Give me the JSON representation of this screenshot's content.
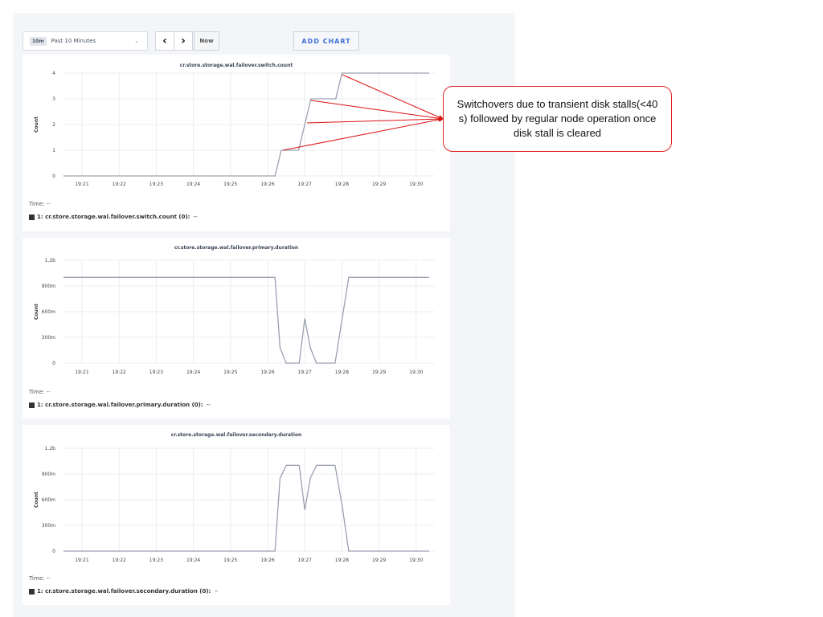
{
  "toolbar": {
    "range_badge": "10m",
    "range_label": "Past 10 Minutes",
    "prev_icon": "chevron-left-icon",
    "next_icon": "chevron-right-icon",
    "now_label": "Now",
    "add_chart_label": "ADD CHART"
  },
  "colors": {
    "series": "#9aa0b0",
    "annotation": "#dd1111",
    "accent": "#3d6fd6"
  },
  "annotation": {
    "text": "Switchovers due to transient disk stalls(<40 s) followed by regular node operation once disk stall is cleared"
  },
  "chart_data": [
    {
      "type": "line",
      "title": "cr.store.storage.wal.failover.switch.count",
      "ylabel": "Count",
      "ylim": [
        0,
        4
      ],
      "yticks": [
        {
          "v": 0,
          "label": "0"
        },
        {
          "v": 1,
          "label": "1"
        },
        {
          "v": 2,
          "label": "2"
        },
        {
          "v": 3,
          "label": "3"
        },
        {
          "v": 4,
          "label": "4"
        }
      ],
      "xticks": [
        "19:21",
        "19:22",
        "19:23",
        "19:24",
        "19:25",
        "19:26",
        "19:27",
        "19:28",
        "19:29",
        "19:30"
      ],
      "grid": true,
      "time_label": "Time:",
      "time_value": "--",
      "legend": {
        "label": "1: cr.store.storage.wal.failover.switch.count (0):",
        "value": "--"
      },
      "series": [
        {
          "x": [
            "19:20:30",
            "19:26:12",
            "19:26:22",
            "19:26:50",
            "19:27:10",
            "19:27:50",
            "19:28:00",
            "19:30:21"
          ],
          "y": [
            0,
            0,
            1,
            1,
            3,
            3,
            4,
            4
          ]
        }
      ]
    },
    {
      "type": "line",
      "title": "cr.store.storage.wal.failover.primary.duration",
      "ylabel": "Count",
      "ylim": [
        0,
        1.2
      ],
      "yticks": [
        {
          "v": 0,
          "label": "0"
        },
        {
          "v": 0.3,
          "label": "300m"
        },
        {
          "v": 0.6,
          "label": "600m"
        },
        {
          "v": 0.9,
          "label": "900m"
        },
        {
          "v": 1.2,
          "label": "1.2b"
        }
      ],
      "xticks": [
        "19:21",
        "19:22",
        "19:23",
        "19:24",
        "19:25",
        "19:26",
        "19:27",
        "19:28",
        "19:29",
        "19:30"
      ],
      "grid": true,
      "time_label": "Time:",
      "time_value": "--",
      "legend": {
        "label": "1: cr.store.storage.wal.failover.primary.duration (0):",
        "value": "--"
      },
      "series": [
        {
          "x": [
            "19:20:30",
            "19:26:12",
            "19:26:20",
            "19:26:30",
            "19:26:51",
            "19:27:00",
            "19:27:09",
            "19:27:19",
            "19:27:49",
            "19:28:11",
            "19:30:21"
          ],
          "y": [
            1,
            1,
            0.18,
            0,
            0,
            0.52,
            0.18,
            0,
            0,
            1,
            1
          ]
        }
      ]
    },
    {
      "type": "line",
      "title": "cr.store.storage.wal.failover.secondary.duration",
      "ylabel": "Count",
      "ylim": [
        0,
        1.2
      ],
      "yticks": [
        {
          "v": 0,
          "label": "0"
        },
        {
          "v": 0.3,
          "label": "300m"
        },
        {
          "v": 0.6,
          "label": "600m"
        },
        {
          "v": 0.9,
          "label": "900m"
        },
        {
          "v": 1.2,
          "label": "1.2b"
        }
      ],
      "xticks": [
        "19:21",
        "19:22",
        "19:23",
        "19:24",
        "19:25",
        "19:26",
        "19:27",
        "19:28",
        "19:29",
        "19:30"
      ],
      "grid": true,
      "time_label": "Time:",
      "time_value": "--",
      "legend": {
        "label": "1: cr.store.storage.wal.failover.secondary.duration (0):",
        "value": "--"
      },
      "series": [
        {
          "x": [
            "19:20:30",
            "19:26:12",
            "19:26:20",
            "19:26:30",
            "19:26:51",
            "19:27:00",
            "19:27:09",
            "19:27:19",
            "19:27:49",
            "19:28:01",
            "19:28:11",
            "19:30:21"
          ],
          "y": [
            0,
            0,
            0.85,
            1,
            1,
            0.48,
            0.85,
            1,
            1,
            0.5,
            0,
            0
          ]
        }
      ]
    }
  ]
}
